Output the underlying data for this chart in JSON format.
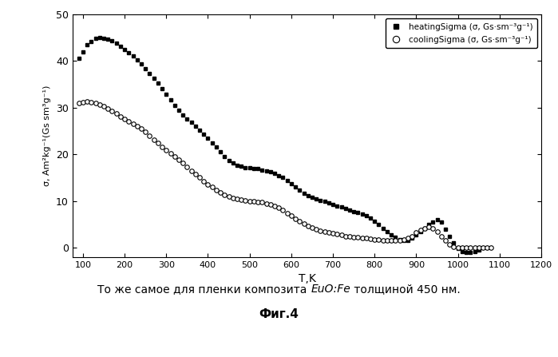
{
  "title_line1": "То же самое для пленки композита ",
  "title_italic": "EuO:Fe",
  "title_line1_end": " толщиной 450 нм.",
  "title_line2": "Фиг.4",
  "xlabel": "T,K",
  "ylabel": "σ, Am²kg⁻¹(Gs sm³g⁻¹)",
  "xlim": [
    75,
    1200
  ],
  "ylim": [
    -2,
    50
  ],
  "yticks": [
    0,
    10,
    20,
    30,
    40,
    50
  ],
  "xticks": [
    100,
    200,
    300,
    400,
    500,
    600,
    700,
    800,
    900,
    1000,
    1100,
    1200
  ],
  "legend_heating": "heatingSigma (σ, Gs·sm⁻³g⁻¹)",
  "legend_cooling": "coolingSigma (σ, Gs·sm⁻³g⁻¹)",
  "heating_x": [
    90,
    100,
    110,
    120,
    130,
    140,
    150,
    160,
    170,
    180,
    190,
    200,
    210,
    220,
    230,
    240,
    250,
    260,
    270,
    280,
    290,
    300,
    310,
    320,
    330,
    340,
    350,
    360,
    370,
    380,
    390,
    400,
    410,
    420,
    430,
    440,
    450,
    460,
    470,
    480,
    490,
    500,
    510,
    520,
    530,
    540,
    550,
    560,
    570,
    580,
    590,
    600,
    610,
    620,
    630,
    640,
    650,
    660,
    670,
    680,
    690,
    700,
    710,
    720,
    730,
    740,
    750,
    760,
    770,
    780,
    790,
    800,
    810,
    820,
    830,
    840,
    850,
    860,
    870,
    880,
    890,
    900,
    910,
    920,
    930,
    940,
    950,
    960,
    970,
    980,
    990,
    1000,
    1010,
    1020,
    1030,
    1040,
    1050
  ],
  "heating_y": [
    40.5,
    42.0,
    43.5,
    44.2,
    44.8,
    45.0,
    44.9,
    44.7,
    44.3,
    43.8,
    43.2,
    42.5,
    41.8,
    41.0,
    40.2,
    39.3,
    38.4,
    37.4,
    36.3,
    35.2,
    34.0,
    32.8,
    31.6,
    30.5,
    29.5,
    28.5,
    27.6,
    26.8,
    26.0,
    25.2,
    24.4,
    23.5,
    22.5,
    21.5,
    20.5,
    19.5,
    18.7,
    18.1,
    17.7,
    17.4,
    17.2,
    17.1,
    17.0,
    16.9,
    16.7,
    16.5,
    16.2,
    15.9,
    15.5,
    15.0,
    14.4,
    13.7,
    13.0,
    12.3,
    11.7,
    11.2,
    10.8,
    10.5,
    10.2,
    9.9,
    9.6,
    9.3,
    9.0,
    8.7,
    8.4,
    8.1,
    7.8,
    7.5,
    7.2,
    6.8,
    6.3,
    5.7,
    5.0,
    4.2,
    3.5,
    2.8,
    2.2,
    1.8,
    1.5,
    1.5,
    2.0,
    2.8,
    3.5,
    4.2,
    5.0,
    5.5,
    6.0,
    5.5,
    4.0,
    2.5,
    1.0,
    -0.2,
    -0.8,
    -1.0,
    -1.0,
    -0.8,
    -0.5
  ],
  "cooling_x": [
    90,
    100,
    110,
    120,
    130,
    140,
    150,
    160,
    170,
    180,
    190,
    200,
    210,
    220,
    230,
    240,
    250,
    260,
    270,
    280,
    290,
    300,
    310,
    320,
    330,
    340,
    350,
    360,
    370,
    380,
    390,
    400,
    410,
    420,
    430,
    440,
    450,
    460,
    470,
    480,
    490,
    500,
    510,
    520,
    530,
    540,
    550,
    560,
    570,
    580,
    590,
    600,
    610,
    620,
    630,
    640,
    650,
    660,
    670,
    680,
    690,
    700,
    710,
    720,
    730,
    740,
    750,
    760,
    770,
    780,
    790,
    800,
    810,
    820,
    830,
    840,
    850,
    860,
    870,
    880,
    890,
    900,
    910,
    920,
    930,
    940,
    950,
    960,
    970,
    980,
    990,
    1000,
    1010,
    1020,
    1030,
    1040,
    1050,
    1060,
    1070,
    1080
  ],
  "cooling_y": [
    31.0,
    31.2,
    31.3,
    31.2,
    31.0,
    30.7,
    30.3,
    29.8,
    29.3,
    28.7,
    28.1,
    27.6,
    27.1,
    26.6,
    26.1,
    25.5,
    24.8,
    24.0,
    23.2,
    22.4,
    21.6,
    20.9,
    20.2,
    19.5,
    18.8,
    18.1,
    17.3,
    16.5,
    15.7,
    15.0,
    14.3,
    13.6,
    13.0,
    12.4,
    11.9,
    11.4,
    11.0,
    10.7,
    10.5,
    10.3,
    10.1,
    10.0,
    9.9,
    9.8,
    9.7,
    9.5,
    9.2,
    8.9,
    8.5,
    8.0,
    7.4,
    6.8,
    6.2,
    5.6,
    5.1,
    4.7,
    4.3,
    4.0,
    3.7,
    3.5,
    3.3,
    3.1,
    2.9,
    2.7,
    2.5,
    2.4,
    2.3,
    2.2,
    2.1,
    2.0,
    1.9,
    1.8,
    1.7,
    1.6,
    1.5,
    1.5,
    1.5,
    1.6,
    1.7,
    2.0,
    2.5,
    3.2,
    3.8,
    4.2,
    4.5,
    4.2,
    3.5,
    2.5,
    1.5,
    0.7,
    0.2,
    0.0,
    0.0,
    0.0,
    0.0,
    0.0,
    0.0,
    0.0,
    0.0,
    0.0
  ]
}
